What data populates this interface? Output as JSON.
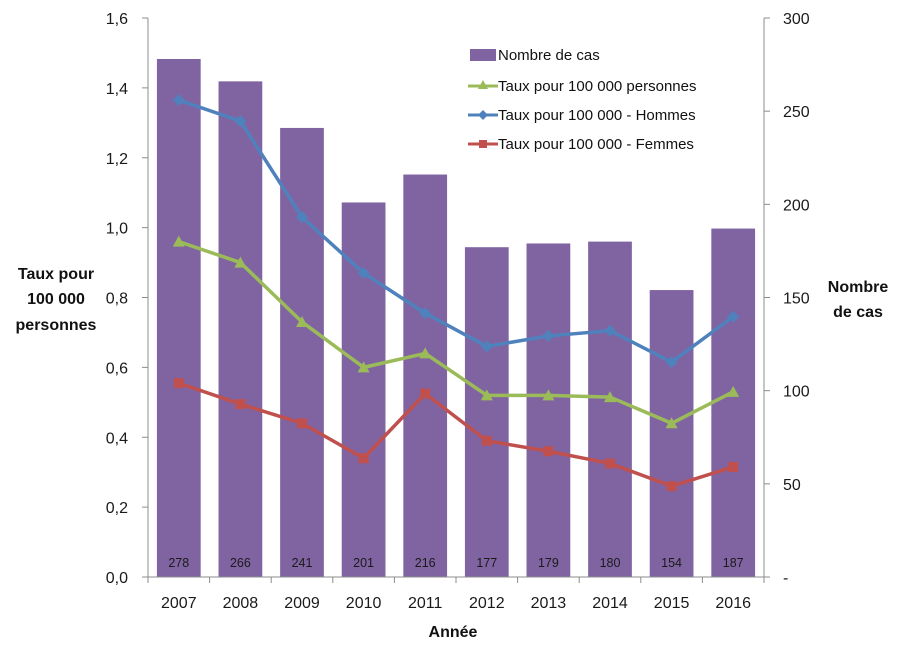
{
  "chart_data": {
    "type": "bar+line",
    "title": "",
    "categories": [
      "2007",
      "2008",
      "2009",
      "2010",
      "2011",
      "2012",
      "2013",
      "2014",
      "2015",
      "2016"
    ],
    "xlabel": "Année",
    "ylabel_left": [
      "Taux pour",
      "100 000",
      "personnes"
    ],
    "ylabel_right": [
      "Nombre",
      "de cas"
    ],
    "left_axis": {
      "min": 0,
      "max": 1.6,
      "step": 0.2,
      "tick_labels": [
        "0,0",
        "0,2",
        "0,4",
        "0,6",
        "0,8",
        "1,0",
        "1,2",
        "1,4",
        "1,6"
      ]
    },
    "right_axis": {
      "min": 0,
      "max": 300,
      "step": 50,
      "tick_labels": [
        "-",
        "50",
        "100",
        "150",
        "200",
        "250",
        "300"
      ]
    },
    "grid": false,
    "legend_position": "top-right",
    "series": [
      {
        "name": "Nombre de cas",
        "type": "bar",
        "axis": "right",
        "color": "#8064a2",
        "values": [
          278,
          266,
          241,
          201,
          216,
          177,
          179,
          180,
          154,
          187
        ],
        "data_labels": [
          "278",
          "266",
          "241",
          "201",
          "216",
          "177",
          "179",
          "180",
          "154",
          "187"
        ]
      },
      {
        "name": "Taux pour 100 000 personnes",
        "type": "line",
        "axis": "left",
        "color": "#9bbb59",
        "marker": "triangle",
        "values": [
          0.96,
          0.9,
          0.73,
          0.6,
          0.64,
          0.52,
          0.52,
          0.515,
          0.44,
          0.53
        ]
      },
      {
        "name": "Taux pour 100 000 - Hommes",
        "type": "line",
        "axis": "left",
        "color": "#4f81bd",
        "marker": "diamond",
        "values": [
          1.365,
          1.305,
          1.03,
          0.87,
          0.755,
          0.66,
          0.69,
          0.705,
          0.615,
          0.745
        ]
      },
      {
        "name": "Taux pour 100 000 - Femmes",
        "type": "line",
        "axis": "left",
        "color": "#c0504d",
        "marker": "square",
        "values": [
          0.555,
          0.495,
          0.44,
          0.34,
          0.525,
          0.39,
          0.36,
          0.325,
          0.26,
          0.315
        ]
      }
    ]
  }
}
